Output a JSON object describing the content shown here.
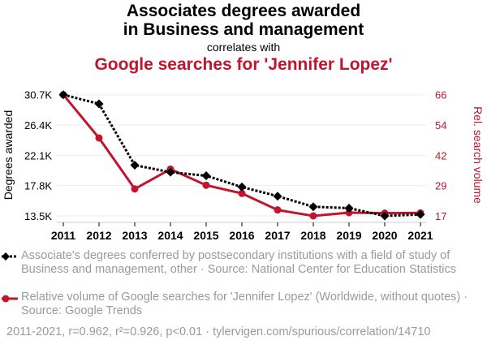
{
  "chart_data": {
    "type": "line",
    "title": "Associates degrees awarded in Business and management",
    "title_lines": [
      "Associates degrees awarded",
      "in Business and management"
    ],
    "subtitle": "correlates with",
    "title2": "Google searches for 'Jennifer Lopez'",
    "x": [
      2011,
      2012,
      2013,
      2014,
      2015,
      2016,
      2017,
      2018,
      2019,
      2020,
      2021
    ],
    "ylabel_left": "Degrees awarded",
    "ylabel_right": "Rel. search volume",
    "ylim_left": [
      13.5,
      30.7
    ],
    "ylim_right": [
      17,
      66
    ],
    "left_ticks": [
      "13.5K",
      "17.8K",
      "22.1K",
      "26.4K",
      "30.7K"
    ],
    "right_ticks": [
      "17",
      "29",
      "42",
      "54",
      "66"
    ],
    "series": [
      {
        "name": "Associate's degrees conferred by postsecondary institutions with a field of study of Business and management, other · Source: National Center for Education Statistics",
        "axis": "left",
        "unit": "thousands",
        "color": "#000000",
        "values": [
          30.7,
          29.4,
          20.7,
          19.7,
          19.2,
          17.6,
          16.3,
          14.8,
          14.6,
          13.5,
          13.7
        ]
      },
      {
        "name": "Relative volume of Google searches for 'Jennifer Lopez' (Worldwide, without quotes) · Source: Google Trends",
        "axis": "right",
        "color": "#c0152f",
        "values": [
          66,
          48.5,
          27.9,
          35.9,
          29.4,
          26.1,
          19.4,
          17,
          18.3,
          18.1,
          18.2
        ]
      }
    ],
    "footer": "2011-2021, r=0.962, r²=0.926, p<0.01 · tylervigen.com/spurious/correlation/14710"
  }
}
